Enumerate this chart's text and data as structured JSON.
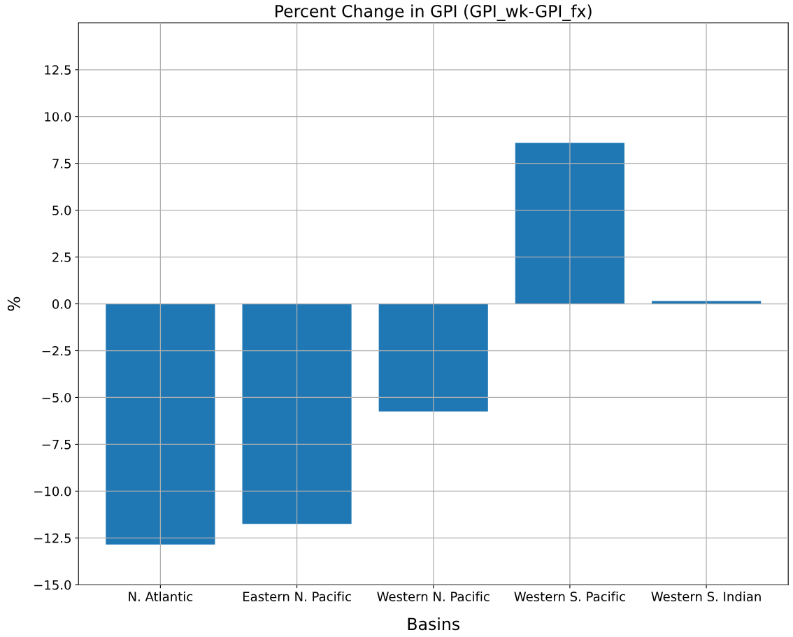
{
  "chart_data": {
    "type": "bar",
    "title": "Percent Change in GPI (GPI_wk-GPI_fx)",
    "xlabel": "Basins",
    "ylabel": "%",
    "categories": [
      "N. Atlantic",
      "Eastern N. Pacific",
      "Western N. Pacific",
      "Western S. Pacific",
      "Western S. Indian"
    ],
    "values": [
      -12.85,
      -11.75,
      -5.75,
      8.6,
      0.15
    ],
    "color": "#1f77b4",
    "ylim": [
      -15,
      15
    ],
    "yticks": [
      {
        "value": -15,
        "label": "−15.0"
      },
      {
        "value": -12.5,
        "label": "−12.5"
      },
      {
        "value": -10,
        "label": "−10.0"
      },
      {
        "value": -7.5,
        "label": "−7.5"
      },
      {
        "value": -5,
        "label": "−5.0"
      },
      {
        "value": -2.5,
        "label": "−2.5"
      },
      {
        "value": 0,
        "label": "0.0"
      },
      {
        "value": 2.5,
        "label": "2.5"
      },
      {
        "value": 5,
        "label": "5.0"
      },
      {
        "value": 7.5,
        "label": "7.5"
      },
      {
        "value": 10,
        "label": "10.0"
      },
      {
        "value": 12.5,
        "label": "12.5"
      }
    ],
    "grid": true
  }
}
